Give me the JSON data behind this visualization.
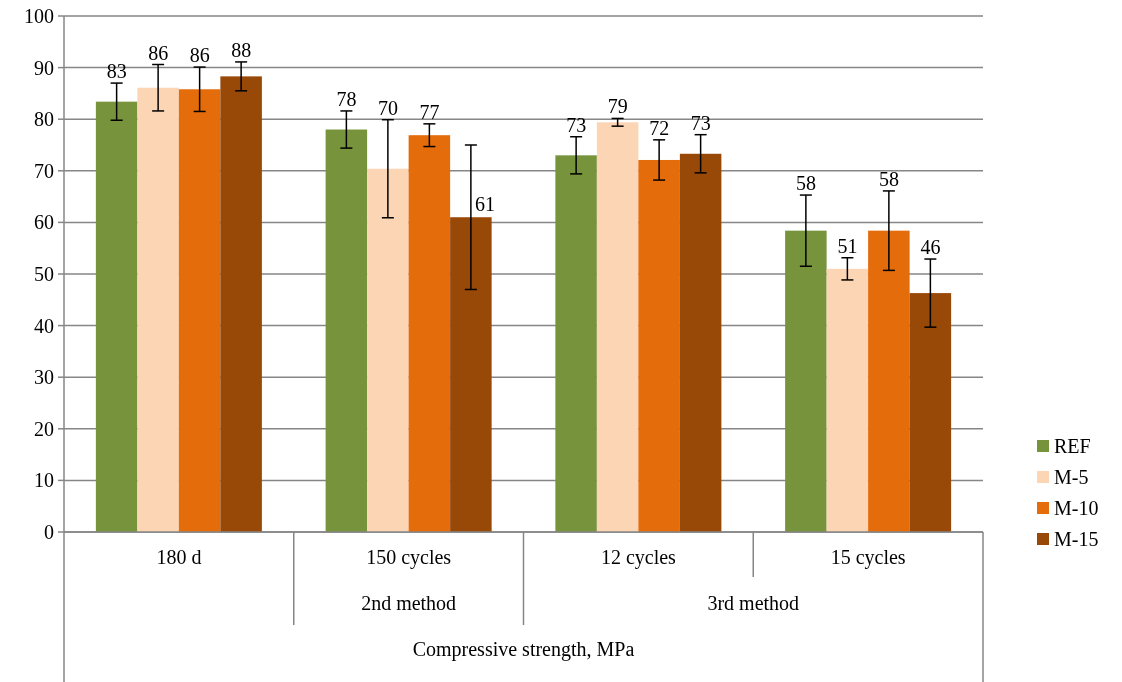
{
  "chart_data": {
    "type": "bar",
    "categories": [
      "180 d",
      "150 cycles",
      "12 cycles",
      "15 cycles"
    ],
    "xlabel": "Compressive strength, MPa",
    "annotations": [
      "2nd method",
      "3rd method"
    ],
    "series": [
      {
        "name": "REF",
        "color": "#77933c",
        "values": [
          83.4,
          78.0,
          73.0,
          58.4
        ],
        "errors": [
          3.6,
          3.6,
          3.6,
          6.9
        ],
        "value_labels": [
          "83",
          "78",
          "73",
          "58"
        ]
      },
      {
        "name": "M-5",
        "color": "#fcd5b5",
        "values": [
          86.1,
          70.4,
          79.4,
          51.0
        ],
        "errors": [
          4.5,
          9.5,
          0.75,
          2.15
        ],
        "value_labels": [
          "86",
          "70",
          "79",
          "51"
        ]
      },
      {
        "name": "M-10",
        "color": "#e46c0a",
        "values": [
          85.8,
          76.9,
          72.1,
          58.4
        ],
        "errors": [
          4.3,
          2.2,
          3.9,
          7.7
        ],
        "value_labels": [
          "86",
          "77",
          "72",
          "58"
        ]
      },
      {
        "name": "M-15",
        "color": "#984807",
        "values": [
          88.3,
          61.0,
          73.3,
          46.3
        ],
        "errors": [
          2.8,
          14,
          3.7,
          6.6
        ],
        "value_labels": [
          "88",
          "61",
          "73",
          "46"
        ]
      }
    ],
    "ylim": [
      0,
      100
    ],
    "yticks": [
      0,
      10,
      20,
      30,
      40,
      50,
      60,
      70,
      80,
      90,
      100
    ],
    "grid": "y",
    "legend": "right"
  }
}
